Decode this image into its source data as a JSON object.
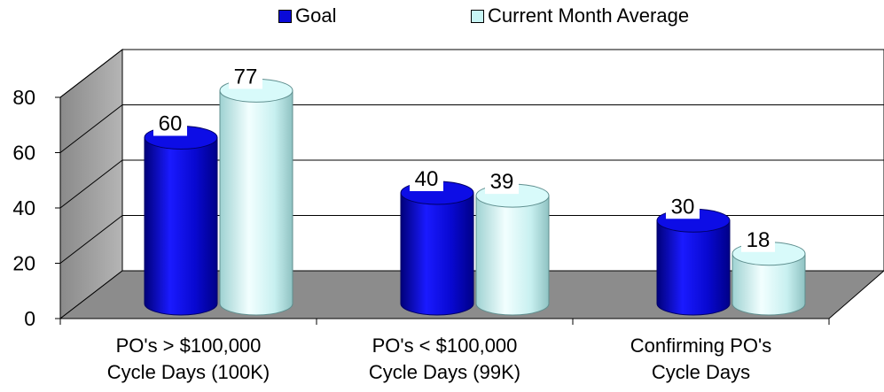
{
  "chart_data": {
    "type": "bar",
    "title": "",
    "xlabel": "",
    "ylabel": "",
    "ylim": [
      0,
      80
    ],
    "yticks": [
      "0",
      "20",
      "40",
      "60",
      "80"
    ],
    "categories": [
      [
        "PO's > $100,000",
        "Cycle Days (100K)"
      ],
      [
        "PO's < $100,000",
        "Cycle Days (99K)"
      ],
      [
        "Confirming PO's",
        "Cycle Days"
      ]
    ],
    "series": [
      {
        "name": "Goal",
        "color": "#0a0ad8",
        "values": [
          60,
          40,
          30
        ]
      },
      {
        "name": "Current Month Average",
        "color": "#c8f5f5",
        "values": [
          77,
          39,
          18
        ]
      }
    ],
    "value_labels": [
      [
        "60",
        "40",
        "30"
      ],
      [
        "77",
        "39",
        "18"
      ]
    ],
    "legend_position": "top",
    "grid": true,
    "style": "3d-cylinder"
  }
}
